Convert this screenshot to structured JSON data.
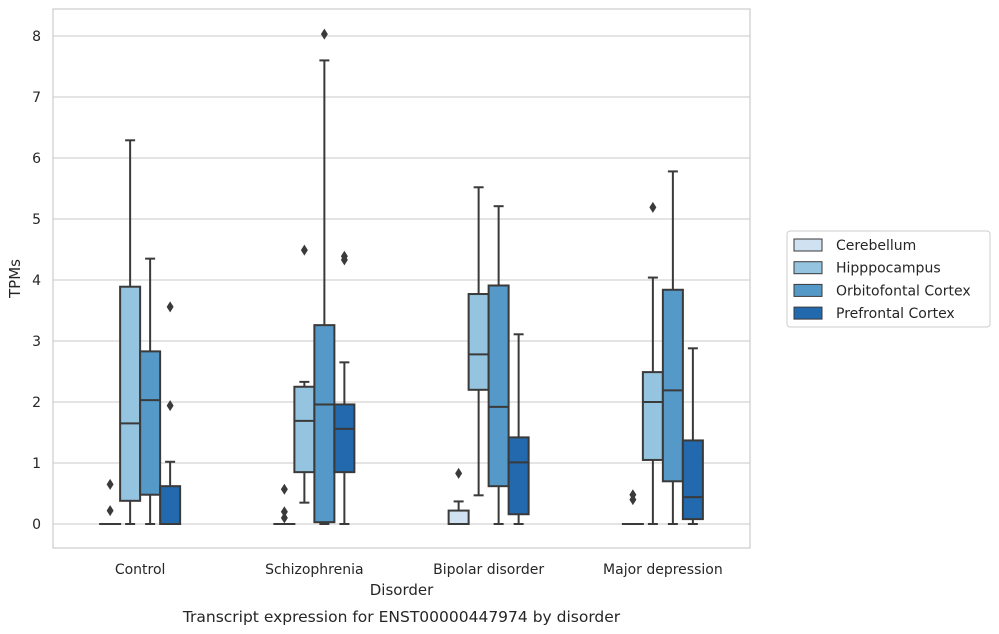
{
  "chart_data": {
    "type": "box",
    "title": "",
    "caption": "Transcript expression for ENST00000447974 by disorder",
    "xlabel": "Disorder",
    "ylabel": "TPMs",
    "ylim": [
      -0.4,
      8.45
    ],
    "yticks": [
      "0",
      "1",
      "2",
      "3",
      "4",
      "5",
      "6",
      "7",
      "8"
    ],
    "grid": "horizontal",
    "legend_position": "right",
    "categories": [
      "Control",
      "Schizophrenia",
      "Bipolar disorder",
      "Major depression"
    ],
    "series": [
      {
        "name": "Cerebellum",
        "color": "#d0e2f2",
        "boxes": [
          {
            "whislo": 0,
            "q1": 0,
            "med": 0,
            "q3": 0,
            "whishi": 0,
            "fliers": [
              0.22,
              0.65
            ]
          },
          {
            "whislo": 0,
            "q1": 0,
            "med": 0,
            "q3": 0,
            "whishi": 0,
            "fliers": [
              0.1,
              0.2,
              0.57
            ]
          },
          {
            "whislo": 0,
            "q1": 0,
            "med": 0,
            "q3": 0.22,
            "whishi": 0.37,
            "fliers": [
              0.83
            ]
          },
          {
            "whislo": 0,
            "q1": 0,
            "med": 0,
            "q3": 0,
            "whishi": 0,
            "fliers": [
              0.4,
              0.48
            ]
          }
        ]
      },
      {
        "name": "Hipppocampus",
        "color": "#94c4df",
        "boxes": [
          {
            "whislo": 0,
            "q1": 0.38,
            "med": 1.65,
            "q3": 3.89,
            "whishi": 6.29,
            "fliers": []
          },
          {
            "whislo": 0.35,
            "q1": 0.85,
            "med": 1.69,
            "q3": 2.25,
            "whishi": 2.33,
            "fliers": [
              4.49
            ]
          },
          {
            "whislo": 0.47,
            "q1": 2.2,
            "med": 2.78,
            "q3": 3.77,
            "whishi": 5.52,
            "fliers": []
          },
          {
            "whislo": 0,
            "q1": 1.05,
            "med": 2.0,
            "q3": 2.49,
            "whishi": 4.04,
            "fliers": [
              5.19
            ]
          }
        ]
      },
      {
        "name": "Orbitofontal Cortex",
        "color": "#5599c8",
        "boxes": [
          {
            "whislo": 0,
            "q1": 0.48,
            "med": 2.03,
            "q3": 2.83,
            "whishi": 4.35,
            "fliers": []
          },
          {
            "whislo": 0,
            "q1": 0.03,
            "med": 1.96,
            "q3": 3.26,
            "whishi": 7.6,
            "fliers": [
              8.03
            ]
          },
          {
            "whislo": 0,
            "q1": 0.62,
            "med": 1.92,
            "q3": 3.91,
            "whishi": 5.21,
            "fliers": []
          },
          {
            "whislo": 0,
            "q1": 0.7,
            "med": 2.19,
            "q3": 3.84,
            "whishi": 5.78,
            "fliers": []
          }
        ]
      },
      {
        "name": "Prefrontal Cortex",
        "color": "#2269ad",
        "boxes": [
          {
            "whislo": 0,
            "q1": 0,
            "med": 0,
            "q3": 0.62,
            "whishi": 1.02,
            "fliers": [
              1.94,
              3.56
            ]
          },
          {
            "whislo": 0,
            "q1": 0.85,
            "med": 1.56,
            "q3": 1.96,
            "whishi": 2.65,
            "fliers": [
              4.33,
              4.39
            ]
          },
          {
            "whislo": 0,
            "q1": 0.16,
            "med": 1.01,
            "q3": 1.42,
            "whishi": 3.11,
            "fliers": []
          },
          {
            "whislo": 0,
            "q1": 0.08,
            "med": 0.44,
            "q3": 1.37,
            "whishi": 2.88,
            "fliers": []
          }
        ]
      }
    ]
  }
}
